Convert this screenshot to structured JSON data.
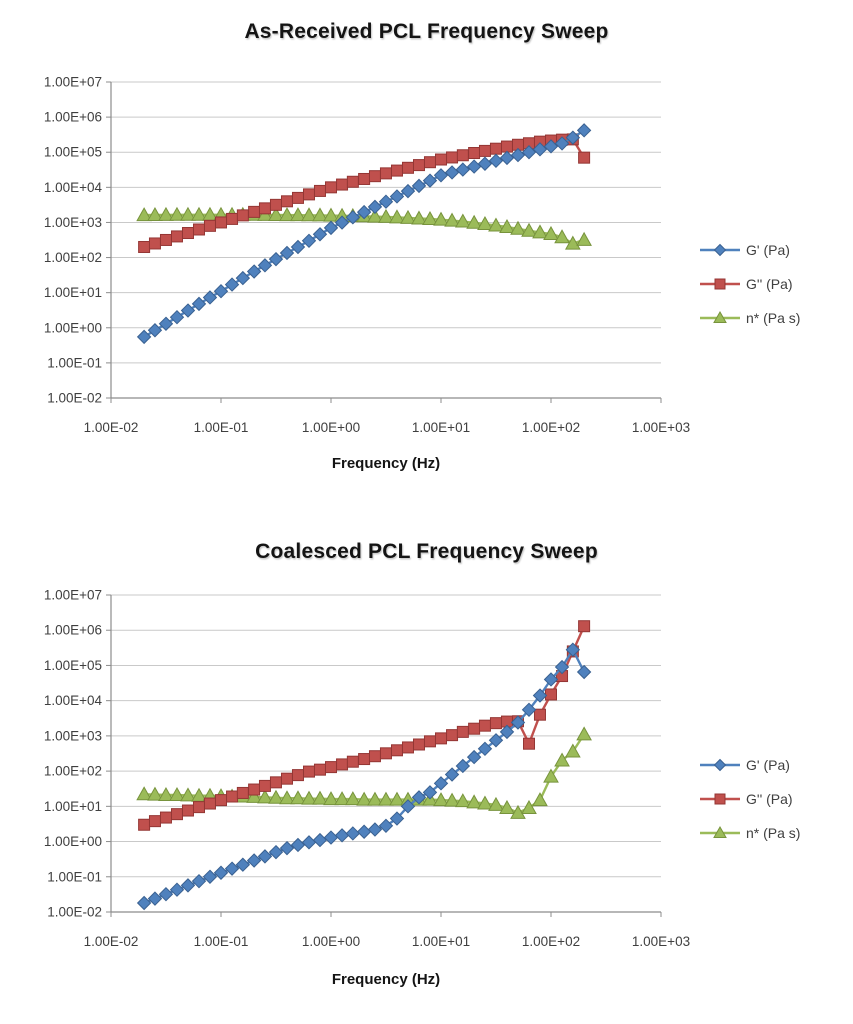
{
  "styles": {
    "background": "#FFFFFF",
    "grid_color": "#C9C9C9",
    "axis_color": "#8C8C8C",
    "tick_text_color": "#3F3F3F",
    "title_color": "#141414",
    "series_blue": "#4F81BD",
    "series_red": "#C0504D",
    "series_green": "#9BBB59"
  },
  "chart_data": [
    {
      "type": "line",
      "title": "As-Received PCL Frequency Sweep",
      "xlabel": "Frequency (Hz)",
      "ylabel": "",
      "x_scale": "log",
      "y_scale": "log",
      "xlim": [
        0.01,
        1000
      ],
      "ylim": [
        0.01,
        10000000
      ],
      "grid": "horizontal",
      "legend_position": "right",
      "x_tick_labels": [
        "1.00E-02",
        "1.00E-01",
        "1.00E+00",
        "1.00E+01",
        "1.00E+02",
        "1.00E+03"
      ],
      "y_tick_labels": [
        "1.00E+07",
        "1.00E+06",
        "1.00E+05",
        "1.00E+04",
        "1.00E+03",
        "1.00E+02",
        "1.00E+01",
        "1.00E+00",
        "1.00E-01",
        "1.00E-02"
      ],
      "x": [
        0.02,
        0.0251,
        0.0316,
        0.0398,
        0.0501,
        0.0631,
        0.0794,
        0.1,
        0.126,
        0.158,
        0.2,
        0.251,
        0.316,
        0.398,
        0.501,
        0.631,
        0.794,
        1,
        1.26,
        1.58,
        2,
        2.51,
        3.16,
        3.98,
        5.01,
        6.31,
        7.94,
        10,
        12.6,
        15.8,
        20,
        25.1,
        31.6,
        39.8,
        50.1,
        63.1,
        79.4,
        100,
        126,
        158,
        200
      ],
      "series": [
        {
          "name": "G' (Pa)",
          "id": "g-prime",
          "color": "#4F81BD",
          "stroke": "#3A6191",
          "marker": "diamond",
          "values": [
            0.55,
            0.85,
            1.3,
            2.0,
            3.1,
            4.8,
            7.3,
            11,
            17,
            26,
            40,
            60,
            90,
            135,
            200,
            300,
            460,
            700,
            990,
            1400,
            1970,
            2780,
            3900,
            5500,
            7800,
            11000,
            15500,
            22000,
            26500,
            32000,
            39000,
            47000,
            57000,
            69000,
            83000,
            100000,
            121000,
            147000,
            178000,
            260000,
            420000
          ]
        },
        {
          "name": "G'' (Pa)",
          "id": "g-double-prime",
          "color": "#C0504D",
          "stroke": "#943634",
          "marker": "square",
          "values": [
            200,
            252,
            317,
            400,
            500,
            630,
            800,
            1000,
            1260,
            1590,
            2000,
            2520,
            3170,
            4000,
            5000,
            6300,
            7900,
            10000,
            12000,
            14400,
            17300,
            20800,
            25000,
            30000,
            36000,
            43000,
            52000,
            62000,
            71000,
            82000,
            95000,
            109000,
            126000,
            145000,
            163000,
            180000,
            200000,
            215000,
            228000,
            232000,
            70000
          ]
        },
        {
          "name": "n* (Pa s)",
          "id": "n-star",
          "color": "#9BBB59",
          "stroke": "#77933C",
          "marker": "triangle",
          "values": [
            1620,
            1630,
            1640,
            1650,
            1650,
            1650,
            1650,
            1650,
            1650,
            1650,
            1650,
            1640,
            1630,
            1620,
            1610,
            1600,
            1590,
            1570,
            1550,
            1530,
            1500,
            1470,
            1440,
            1400,
            1350,
            1300,
            1250,
            1200,
            1130,
            1060,
            980,
            900,
            820,
            740,
            660,
            580,
            520,
            470,
            380,
            250,
            320
          ]
        }
      ]
    },
    {
      "type": "line",
      "title": "Coalesced PCL Frequency Sweep",
      "xlabel": "Frequency (Hz)",
      "ylabel": "",
      "x_scale": "log",
      "y_scale": "log",
      "xlim": [
        0.01,
        1000
      ],
      "ylim": [
        0.01,
        10000000
      ],
      "grid": "horizontal",
      "legend_position": "right",
      "x_tick_labels": [
        "1.00E-02",
        "1.00E-01",
        "1.00E+00",
        "1.00E+01",
        "1.00E+02",
        "1.00E+03"
      ],
      "y_tick_labels": [
        "1.00E+07",
        "1.00E+06",
        "1.00E+05",
        "1.00E+04",
        "1.00E+03",
        "1.00E+02",
        "1.00E+01",
        "1.00E+00",
        "1.00E-01",
        "1.00E-02"
      ],
      "x": [
        0.02,
        0.0251,
        0.0316,
        0.0398,
        0.0501,
        0.0631,
        0.0794,
        0.1,
        0.126,
        0.158,
        0.2,
        0.251,
        0.316,
        0.398,
        0.501,
        0.631,
        0.794,
        1,
        1.26,
        1.58,
        2,
        2.51,
        3.16,
        3.98,
        5.01,
        6.31,
        7.94,
        10,
        12.6,
        15.8,
        20,
        25.1,
        31.6,
        39.8,
        50.1,
        63.1,
        79.4,
        100,
        126,
        158,
        200
      ],
      "series": [
        {
          "name": "G' (Pa)",
          "id": "g-prime",
          "color": "#4F81BD",
          "stroke": "#3A6191",
          "marker": "diamond",
          "values": [
            0.018,
            0.024,
            0.032,
            0.043,
            0.057,
            0.075,
            0.1,
            0.13,
            0.17,
            0.22,
            0.29,
            0.38,
            0.5,
            0.65,
            0.8,
            0.95,
            1.1,
            1.3,
            1.5,
            1.7,
            1.9,
            2.2,
            2.8,
            4.5,
            10,
            18,
            25,
            45,
            80,
            140,
            250,
            430,
            750,
            1300,
            2400,
            5500,
            14000,
            40000,
            90000,
            280000,
            65000
          ]
        },
        {
          "name": "G'' (Pa)",
          "id": "g-double-prime",
          "color": "#C0504D",
          "stroke": "#943634",
          "marker": "square",
          "values": [
            3,
            3.8,
            4.8,
            6,
            7.6,
            9.5,
            12,
            15,
            19,
            24,
            30,
            38,
            48,
            61,
            77,
            97,
            110,
            130,
            155,
            185,
            220,
            265,
            320,
            390,
            470,
            570,
            700,
            850,
            1050,
            1300,
            1600,
            1950,
            2300,
            2550,
            2600,
            600,
            4000,
            15000,
            50000,
            250000,
            1300000
          ]
        },
        {
          "name": "n* (Pa s)",
          "id": "n-star",
          "color": "#9BBB59",
          "stroke": "#77933C",
          "marker": "triangle",
          "values": [
            22,
            21.5,
            21,
            21,
            20.5,
            20,
            20,
            19.5,
            19,
            19,
            18.5,
            18,
            17.5,
            17,
            17,
            16.5,
            16.5,
            16,
            16,
            16,
            15.5,
            15.5,
            15.5,
            15.5,
            15.5,
            15.5,
            15.5,
            15,
            14.5,
            14,
            13,
            12,
            11,
            9,
            6.5,
            9,
            15,
            70,
            200,
            360,
            1100
          ]
        }
      ]
    }
  ]
}
